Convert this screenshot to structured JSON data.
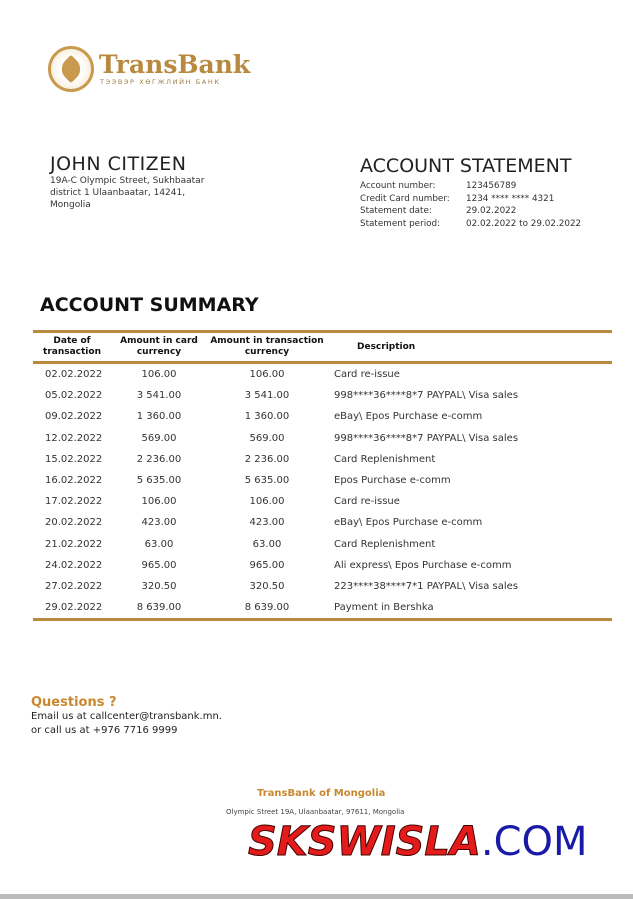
{
  "logo": {
    "name": "TransBank",
    "subtitle": "ТЭЭВЭР ХӨГЖЛИЙН БАНК"
  },
  "customer": {
    "name": "JOHN CITIZEN",
    "address": [
      "19A-C Olympic Street, Sukhbaatar",
      "district 1 Ulaanbaatar, 14241,",
      "Mongolia"
    ]
  },
  "statement": {
    "title": "ACCOUNT STATEMENT",
    "fields": [
      {
        "label": "Account number:",
        "value": "123456789"
      },
      {
        "label": "Credit Card number:",
        "value": "1234 **** **** 4321"
      },
      {
        "label": "Statement date:",
        "value": "29.02.2022"
      },
      {
        "label": "Statement period:",
        "value": "02.02.2022 to 29.02.2022"
      }
    ]
  },
  "summary": {
    "title": "ACCOUNT SUMMARY",
    "headers": [
      "Date of transaction",
      "Amount in card currency",
      "Amount in transaction currency",
      "Description"
    ],
    "rows": [
      [
        "02.02.2022",
        "106.00",
        "106.00",
        "Card re-issue"
      ],
      [
        "05.02.2022",
        "3 541.00",
        "3 541.00",
        "998****36****8*7 PAYPAL\\ Visa sales"
      ],
      [
        "09.02.2022",
        "1 360.00",
        "1 360.00",
        "eBay\\ Epos Purchase e-comm"
      ],
      [
        "12.02.2022",
        "569.00",
        "569.00",
        "998****36****8*7 PAYPAL\\ Visa sales"
      ],
      [
        "15.02.2022",
        "2 236.00",
        "2 236.00",
        "Card Replenishment"
      ],
      [
        "16.02.2022",
        "5 635.00",
        "5 635.00",
        "Epos Purchase e-comm"
      ],
      [
        "17.02.2022",
        "106.00",
        "106.00",
        "Card re-issue"
      ],
      [
        "20.02.2022",
        "423.00",
        "423.00",
        "eBay\\ Epos Purchase e-comm"
      ],
      [
        "21.02.2022",
        "63.00",
        "63.00",
        "Card Replenishment"
      ],
      [
        "24.02.2022",
        "965.00",
        "965.00",
        "Ali express\\ Epos Purchase e-comm"
      ],
      [
        "27.02.2022",
        "320.50",
        "320.50",
        "223****38****7*1 PAYPAL\\ Visa sales"
      ],
      [
        "29.02.2022",
        "8 639.00",
        "8 639.00",
        "Payment in Bershka"
      ]
    ]
  },
  "questions": {
    "title": "Questions ?",
    "lines": [
      "Email us at callcenter@transbank.mn.",
      "or call us at +976 7716 9999"
    ]
  },
  "footer": {
    "bank": "TransBank of Mongolia",
    "address": "Olympic Street 19A, Ulaanbaatar, 97611, Mongolia"
  },
  "watermark": {
    "part1": "SKSWISLA",
    "part2": ".COM"
  },
  "colors": {
    "accent": "#b8893f",
    "heading_orange": "#c9882e"
  }
}
